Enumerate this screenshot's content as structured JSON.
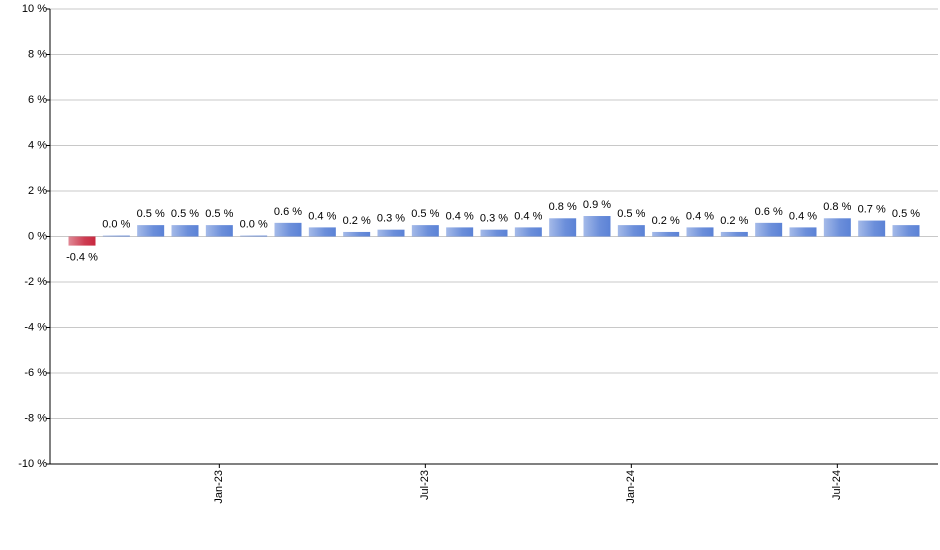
{
  "chart_data": {
    "type": "bar",
    "categories": [
      null,
      null,
      null,
      null,
      "Jan-23",
      null,
      null,
      null,
      null,
      null,
      "Jul-23",
      null,
      null,
      null,
      null,
      null,
      "Jan-24",
      null,
      null,
      null,
      null,
      null,
      "Jul-24",
      null,
      null
    ],
    "values": [
      -0.4,
      0.04,
      0.5,
      0.5,
      0.5,
      0.04,
      0.6,
      0.4,
      0.2,
      0.3,
      0.5,
      0.4,
      0.3,
      0.4,
      0.8,
      0.9,
      0.5,
      0.2,
      0.4,
      0.2,
      0.6,
      0.4,
      0.8,
      0.7,
      0.5
    ],
    "value_labels": [
      "-0.4 %",
      "0.0 %",
      "0.5 %",
      "0.5 %",
      "0.5 %",
      "0.0 %",
      "0.6 %",
      "0.4 %",
      "0.2 %",
      "0.3 %",
      "0.5 %",
      "0.4 %",
      "0.3 %",
      "0.4 %",
      "0.8 %",
      "0.9 %",
      "0.5 %",
      "0.2 %",
      "0.4 %",
      "0.2 %",
      "0.6 %",
      "0.4 %",
      "0.8 %",
      "0.7 %",
      "0.5 %"
    ],
    "color": "#5b82d6",
    "negative_color": "#c8283f",
    "ylim": [
      -10,
      10
    ],
    "yticks": [
      {
        "value": -10,
        "label": "-10 %"
      },
      {
        "value": -8,
        "label": "-8 %"
      },
      {
        "value": -6,
        "label": "-6 %"
      },
      {
        "value": -4,
        "label": "-4 %"
      },
      {
        "value": -2,
        "label": "-2 %"
      },
      {
        "value": 0,
        "label": "0 %"
      },
      {
        "value": 2,
        "label": "2 %"
      },
      {
        "value": 4,
        "label": "4 %"
      },
      {
        "value": 6,
        "label": "6 %"
      },
      {
        "value": 8,
        "label": "8 %"
      },
      {
        "value": 10,
        "label": "10 %"
      }
    ],
    "grid": true
  }
}
